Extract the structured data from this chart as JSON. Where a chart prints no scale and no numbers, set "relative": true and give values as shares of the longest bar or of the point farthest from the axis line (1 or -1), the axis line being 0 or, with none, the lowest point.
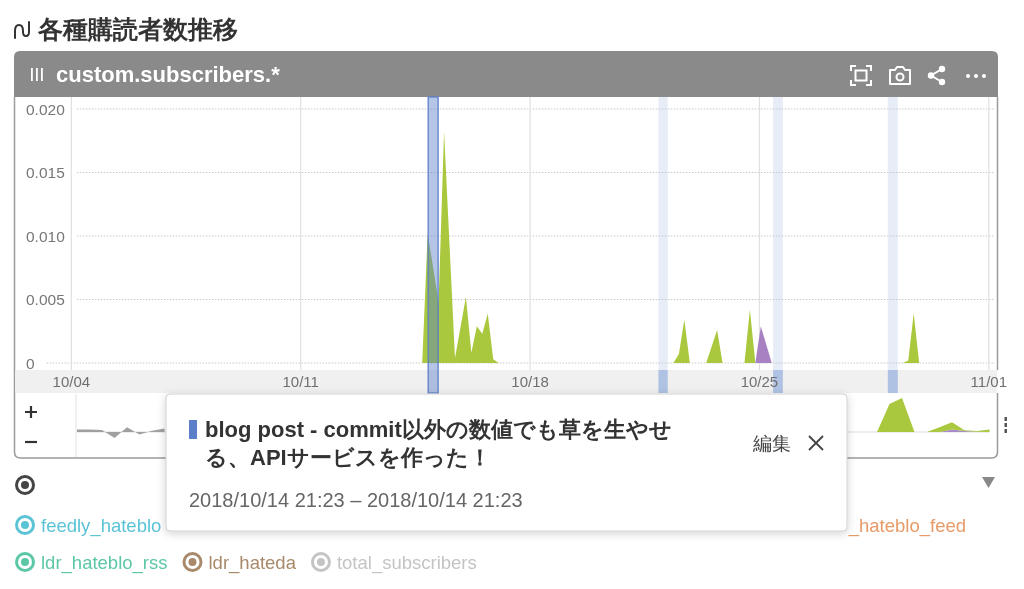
{
  "chart_data": [
    {
      "type": "area",
      "title": "各種購読者数推移",
      "subtitle": "custom.subscribers.*",
      "xlim": [
        "2018-10-02T06:00",
        "2018-11-01T06:00"
      ],
      "xticks": [
        {
          "value": "2018-10-04",
          "label": "10/04"
        },
        {
          "value": "2018-10-11",
          "label": "10/11"
        },
        {
          "value": "2018-10-18",
          "label": "10/18"
        },
        {
          "value": "2018-10-25",
          "label": "10/25"
        },
        {
          "value": "2018-11-01",
          "label": "11/01"
        }
      ],
      "ylim": [
        0,
        0.02
      ],
      "yticks": [
        0,
        0.005,
        {
          "value": 0.01,
          "label": "0.010"
        },
        0.015,
        {
          "value": 0.02,
          "label": "0.020"
        }
      ],
      "grid": true,
      "legend": "bottom",
      "series": [
        {
          "color": "#a9c83d",
          "x": [
            "2018-10-14T17:00",
            "2018-10-14T21:00",
            "2018-10-15T05:00",
            "2018-10-15T09:00",
            "2018-10-15T17:00",
            "2018-10-16T01:00",
            "2018-10-16T05:00",
            "2018-10-16T09:00",
            "2018-10-16T13:00",
            "2018-10-16T17:00",
            "2018-10-16T21:00",
            "2018-10-17T01:00",
            "2018-10-22T09:00",
            "2018-10-22T13:00",
            "2018-10-22T17:00",
            "2018-10-22T21:00",
            "2018-10-23T09:00",
            "2018-10-23T17:00",
            "2018-10-23T21:00",
            "2018-10-24T13:00",
            "2018-10-24T17:00",
            "2018-10-24T21:00",
            "2018-10-29T09:00",
            "2018-10-29T13:00",
            "2018-10-29T17:00",
            "2018-10-29T21:00"
          ],
          "values": [
            0,
            0.0102,
            0.0048,
            0.0182,
            0.0004,
            0.0052,
            0.0008,
            0.0029,
            0.0023,
            0.0039,
            0.0003,
            0,
            0,
            0.0007,
            0.0034,
            0,
            0,
            0.0026,
            0,
            0,
            0.0042,
            0,
            0,
            0.0002,
            0.0039,
            0
          ]
        },
        {
          "color": "#a781c2",
          "x": [
            "2018-10-24T21:00",
            "2018-10-25T01:00",
            "2018-10-25T09:00"
          ],
          "values": [
            0,
            0.0029,
            0
          ]
        },
        {
          "name": "feedly_hateblo",
          "color": "#5bc3d6"
        },
        {
          "name": "_hateblo_feed",
          "color": "#e89a68"
        },
        {
          "name": "ldr_hateblo_rss",
          "color": "#5cc7a6"
        },
        {
          "name": "ldr_hateda",
          "color": "#a8896b"
        },
        {
          "name": "total_subscribers",
          "color": "#c4c4c4"
        }
      ],
      "bands": [
        {
          "axis": "x",
          "from": "2018-10-14T21:23",
          "to": "2018-10-15T04:40",
          "label": "blog post - commit以外の数値でも草を生やせる、APIサービスを作った！",
          "color": "#5b7fc9"
        },
        {
          "axis": "x",
          "from": "2018-10-21T22:00",
          "to": "2018-10-22T04:50",
          "color": "#afc2e3"
        },
        {
          "axis": "x",
          "from": "2018-10-25T10:00",
          "to": "2018-10-25T17:10",
          "color": "#afc2e3"
        },
        {
          "axis": "x",
          "from": "2018-10-28T22:00",
          "to": "2018-10-29T05:20",
          "color": "#afc2e3"
        }
      ],
      "annotations": [
        "2018/10/14 21:23 – 2018/10/14 21:23",
        "編集"
      ]
    },
    {
      "type": "area",
      "relative": true,
      "stacked": true,
      "categories": [
        null,
        null,
        null,
        null,
        null,
        null,
        null,
        null,
        null,
        null,
        null,
        null,
        null,
        null,
        null,
        null,
        null,
        null,
        null,
        null,
        null,
        null,
        null,
        null,
        null,
        null,
        null,
        null,
        null,
        null,
        null,
        null,
        null,
        null,
        null,
        null,
        null,
        null,
        null,
        null,
        null,
        null,
        null,
        null,
        null,
        null,
        null,
        null,
        null,
        null,
        null,
        null,
        null,
        null,
        null,
        null,
        null,
        null,
        null,
        null,
        null,
        null,
        null,
        null,
        null,
        null,
        null,
        null,
        null,
        null,
        null,
        null,
        null,
        null
      ],
      "series": [
        {
          "color": "#a0a0a0",
          "values": [
            0.07,
            0.07,
            0.06,
            -0.18,
            0.14,
            -0.07,
            0.04,
            0.1,
            null,
            null,
            null,
            null,
            null,
            null,
            null,
            null,
            null,
            null,
            null,
            null,
            null,
            null,
            null,
            null,
            null,
            null,
            null,
            null,
            null,
            null,
            null,
            null,
            null,
            null,
            null,
            null,
            null,
            null,
            null,
            null,
            null,
            null,
            null,
            null,
            null,
            null,
            null,
            null,
            null,
            null,
            null,
            null,
            null,
            null,
            null,
            null,
            null,
            null,
            null,
            null,
            null,
            null,
            null,
            null,
            null,
            null,
            null,
            null,
            null,
            null,
            null,
            null,
            null,
            null
          ]
        },
        {
          "color": "#a98bc8",
          "values": [
            null,
            null,
            null,
            null,
            null,
            null,
            null,
            null,
            null,
            null,
            null,
            null,
            null,
            null,
            null,
            null,
            null,
            null,
            null,
            null,
            null,
            null,
            null,
            null,
            null,
            null,
            null,
            null,
            null,
            null,
            null,
            null,
            null,
            null,
            null,
            null,
            null,
            null,
            null,
            null,
            null,
            null,
            null,
            null,
            null,
            null,
            null,
            null,
            null,
            null,
            null,
            null,
            null,
            null,
            null,
            null,
            null,
            null,
            null,
            null,
            null,
            null,
            null,
            null,
            null,
            null,
            null,
            null,
            0,
            0,
            0.07,
            0.03,
            0.01,
            0
          ]
        },
        {
          "color": "#a9c83d",
          "values": [
            null,
            null,
            null,
            null,
            null,
            null,
            null,
            null,
            null,
            null,
            null,
            null,
            null,
            null,
            null,
            null,
            null,
            null,
            null,
            null,
            null,
            null,
            null,
            null,
            null,
            null,
            null,
            null,
            null,
            null,
            null,
            null,
            null,
            null,
            null,
            null,
            null,
            null,
            null,
            null,
            null,
            null,
            null,
            null,
            null,
            null,
            null,
            null,
            null,
            null,
            null,
            null,
            null,
            null,
            null,
            null,
            null,
            null,
            null,
            null,
            null,
            null,
            0,
            0,
            0,
            0.82,
            1,
            0,
            0,
            0.14,
            0.22,
            0.02,
            0.02,
            0.07
          ]
        }
      ]
    }
  ]
}
